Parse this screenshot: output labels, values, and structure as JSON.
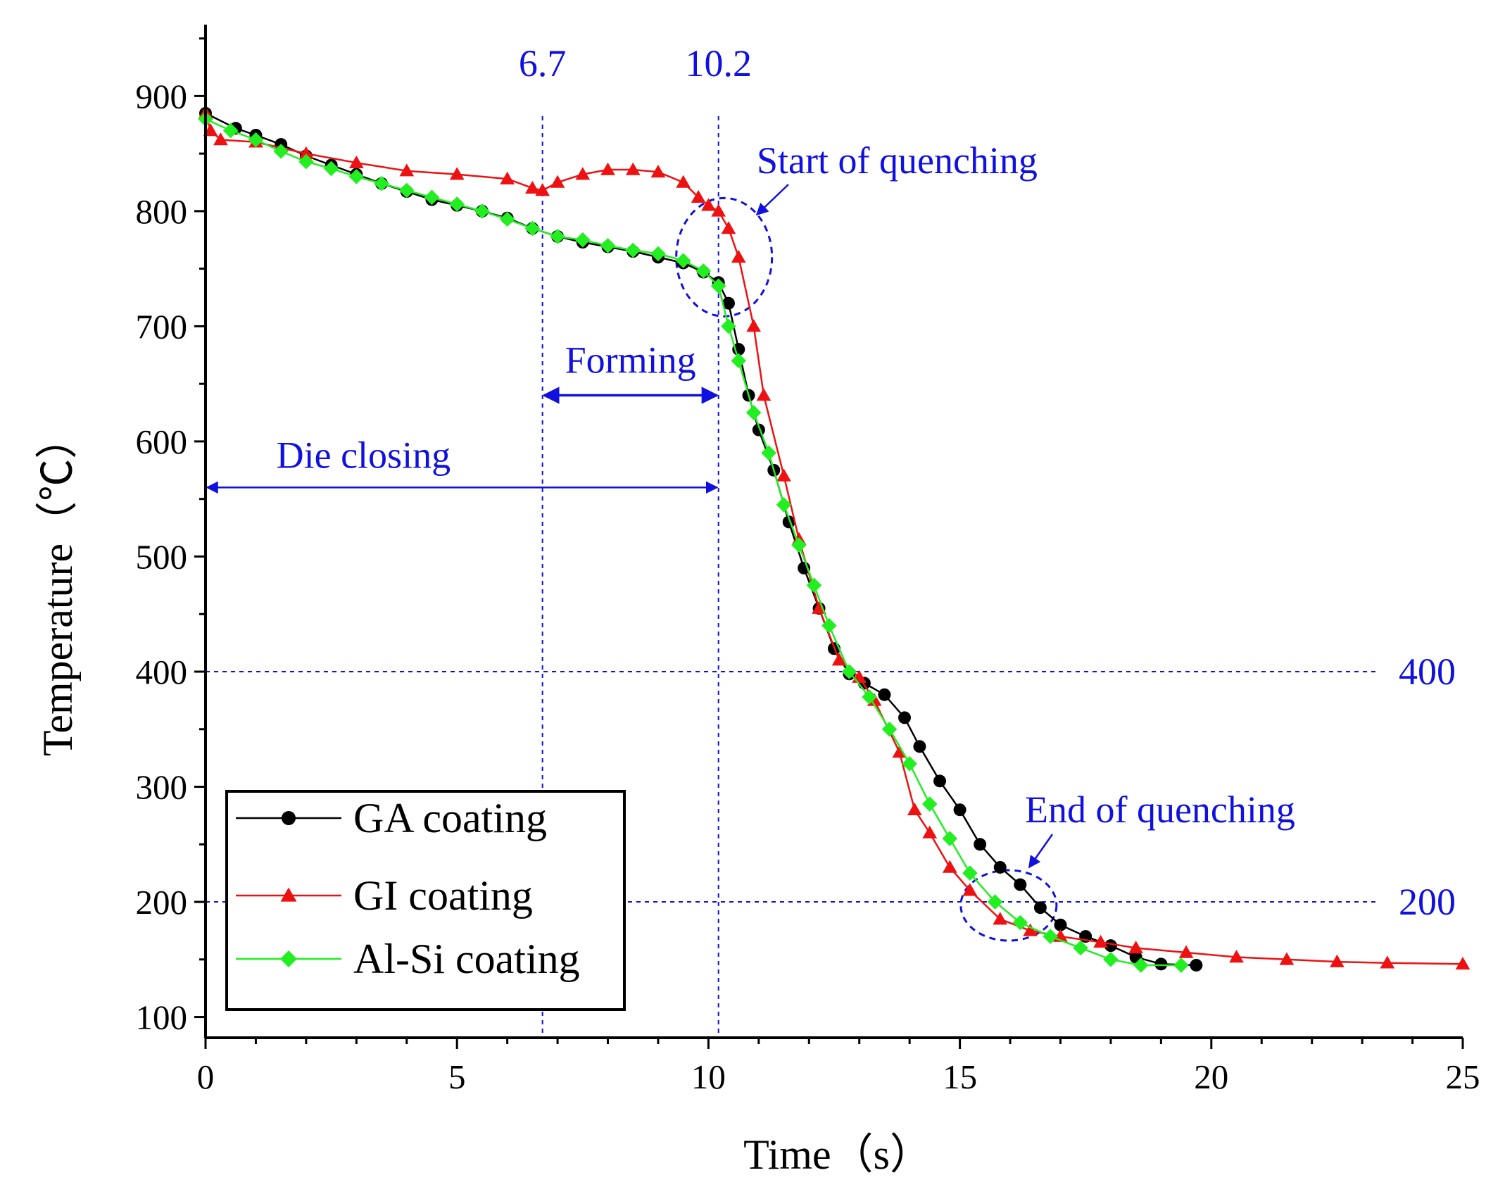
{
  "chart_data": {
    "type": "line",
    "title": "",
    "xlabel": "Time（s）",
    "ylabel": "Temperature（℃）",
    "xlim": [
      0,
      25
    ],
    "ylim": [
      82,
      962
    ],
    "xticks": [
      0,
      5,
      10,
      15,
      20,
      25
    ],
    "yticks": [
      100,
      200,
      300,
      400,
      500,
      600,
      700,
      800,
      900
    ],
    "grid": false,
    "legend_position": "bottom-left",
    "reference_lines": {
      "vertical": [
        {
          "x": 6.7,
          "label": "6.7"
        },
        {
          "x": 10.2,
          "label": "10.2"
        }
      ],
      "horizontal": [
        {
          "y": 400,
          "label": "400"
        },
        {
          "y": 200,
          "label": "200"
        }
      ]
    },
    "annotations": {
      "die_closing": {
        "label": "Die closing",
        "from": 0,
        "to": 10.2,
        "y": 560
      },
      "forming": {
        "label": "Forming",
        "from": 6.7,
        "to": 10.2,
        "y": 640
      },
      "start_quenching": {
        "label": "Start of quenching",
        "center": [
          10.2,
          760
        ]
      },
      "end_quenching": {
        "label": "End of quenching",
        "center": [
          15.9,
          200
        ]
      }
    },
    "series": [
      {
        "name": "GA coating",
        "color": "#000000",
        "marker": "circle",
        "points": [
          [
            0,
            885
          ],
          [
            0.6,
            872
          ],
          [
            1,
            866
          ],
          [
            1.5,
            858
          ],
          [
            2,
            848
          ],
          [
            2.5,
            840
          ],
          [
            3,
            832
          ],
          [
            3.5,
            824
          ],
          [
            4,
            817
          ],
          [
            4.5,
            810
          ],
          [
            5,
            805
          ],
          [
            5.5,
            800
          ],
          [
            6,
            794
          ],
          [
            6.5,
            785
          ],
          [
            7,
            778
          ],
          [
            7.5,
            773
          ],
          [
            8,
            769
          ],
          [
            8.5,
            765
          ],
          [
            9,
            760
          ],
          [
            9.5,
            755
          ],
          [
            9.9,
            747
          ],
          [
            10.2,
            738
          ],
          [
            10.4,
            720
          ],
          [
            10.6,
            680
          ],
          [
            10.8,
            640
          ],
          [
            11,
            610
          ],
          [
            11.3,
            575
          ],
          [
            11.6,
            530
          ],
          [
            11.9,
            490
          ],
          [
            12.2,
            455
          ],
          [
            12.5,
            420
          ],
          [
            12.8,
            398
          ],
          [
            13.1,
            390
          ],
          [
            13.5,
            380
          ],
          [
            13.9,
            360
          ],
          [
            14.2,
            335
          ],
          [
            14.6,
            305
          ],
          [
            15,
            280
          ],
          [
            15.4,
            250
          ],
          [
            15.8,
            230
          ],
          [
            16.2,
            215
          ],
          [
            16.6,
            195
          ],
          [
            17,
            180
          ],
          [
            17.5,
            170
          ],
          [
            18,
            162
          ],
          [
            18.5,
            152
          ],
          [
            19,
            146
          ],
          [
            19.7,
            145
          ]
        ]
      },
      {
        "name": "GI coating",
        "color": "#ee1111",
        "marker": "triangle",
        "points": [
          [
            0,
            885
          ],
          [
            0.1,
            870
          ],
          [
            0.3,
            862
          ],
          [
            1,
            860
          ],
          [
            2,
            850
          ],
          [
            3,
            842
          ],
          [
            4,
            835
          ],
          [
            5,
            832
          ],
          [
            6,
            828
          ],
          [
            6.5,
            820
          ],
          [
            6.7,
            818
          ],
          [
            7,
            825
          ],
          [
            7.5,
            832
          ],
          [
            8,
            836
          ],
          [
            8.5,
            836
          ],
          [
            9,
            834
          ],
          [
            9.5,
            825
          ],
          [
            9.8,
            812
          ],
          [
            10,
            805
          ],
          [
            10.2,
            800
          ],
          [
            10.4,
            785
          ],
          [
            10.6,
            760
          ],
          [
            10.9,
            700
          ],
          [
            11.1,
            640
          ],
          [
            11.5,
            570
          ],
          [
            11.8,
            515
          ],
          [
            12.2,
            455
          ],
          [
            12.6,
            410
          ],
          [
            13,
            395
          ],
          [
            13.3,
            375
          ],
          [
            13.8,
            330
          ],
          [
            14.1,
            280
          ],
          [
            14.4,
            260
          ],
          [
            14.8,
            230
          ],
          [
            15.2,
            210
          ],
          [
            15.8,
            185
          ],
          [
            16.4,
            175
          ],
          [
            17,
            170
          ],
          [
            17.8,
            165
          ],
          [
            18.5,
            160
          ],
          [
            19.5,
            156
          ],
          [
            20.5,
            152
          ],
          [
            21.5,
            150
          ],
          [
            22.5,
            148
          ],
          [
            23.5,
            147
          ],
          [
            25,
            146
          ]
        ]
      },
      {
        "name": "Al-Si coating",
        "color": "#22ee22",
        "marker": "diamond",
        "points": [
          [
            0,
            880
          ],
          [
            0.5,
            870
          ],
          [
            1,
            862
          ],
          [
            1.5,
            852
          ],
          [
            2,
            843
          ],
          [
            2.5,
            837
          ],
          [
            3,
            830
          ],
          [
            3.5,
            824
          ],
          [
            4,
            818
          ],
          [
            4.5,
            812
          ],
          [
            5,
            806
          ],
          [
            5.5,
            800
          ],
          [
            6,
            793
          ],
          [
            6.5,
            785
          ],
          [
            7,
            778
          ],
          [
            7.5,
            775
          ],
          [
            8,
            770
          ],
          [
            8.5,
            766
          ],
          [
            9,
            763
          ],
          [
            9.5,
            757
          ],
          [
            9.9,
            748
          ],
          [
            10.2,
            735
          ],
          [
            10.4,
            700
          ],
          [
            10.6,
            670
          ],
          [
            10.9,
            625
          ],
          [
            11.2,
            590
          ],
          [
            11.5,
            545
          ],
          [
            11.8,
            510
          ],
          [
            12.1,
            475
          ],
          [
            12.4,
            440
          ],
          [
            12.8,
            400
          ],
          [
            13.2,
            378
          ],
          [
            13.6,
            350
          ],
          [
            14,
            320
          ],
          [
            14.4,
            285
          ],
          [
            14.8,
            255
          ],
          [
            15.2,
            225
          ],
          [
            15.7,
            200
          ],
          [
            16.2,
            182
          ],
          [
            16.8,
            170
          ],
          [
            17.4,
            160
          ],
          [
            18,
            150
          ],
          [
            18.6,
            145
          ],
          [
            19.4,
            145
          ]
        ]
      }
    ]
  }
}
